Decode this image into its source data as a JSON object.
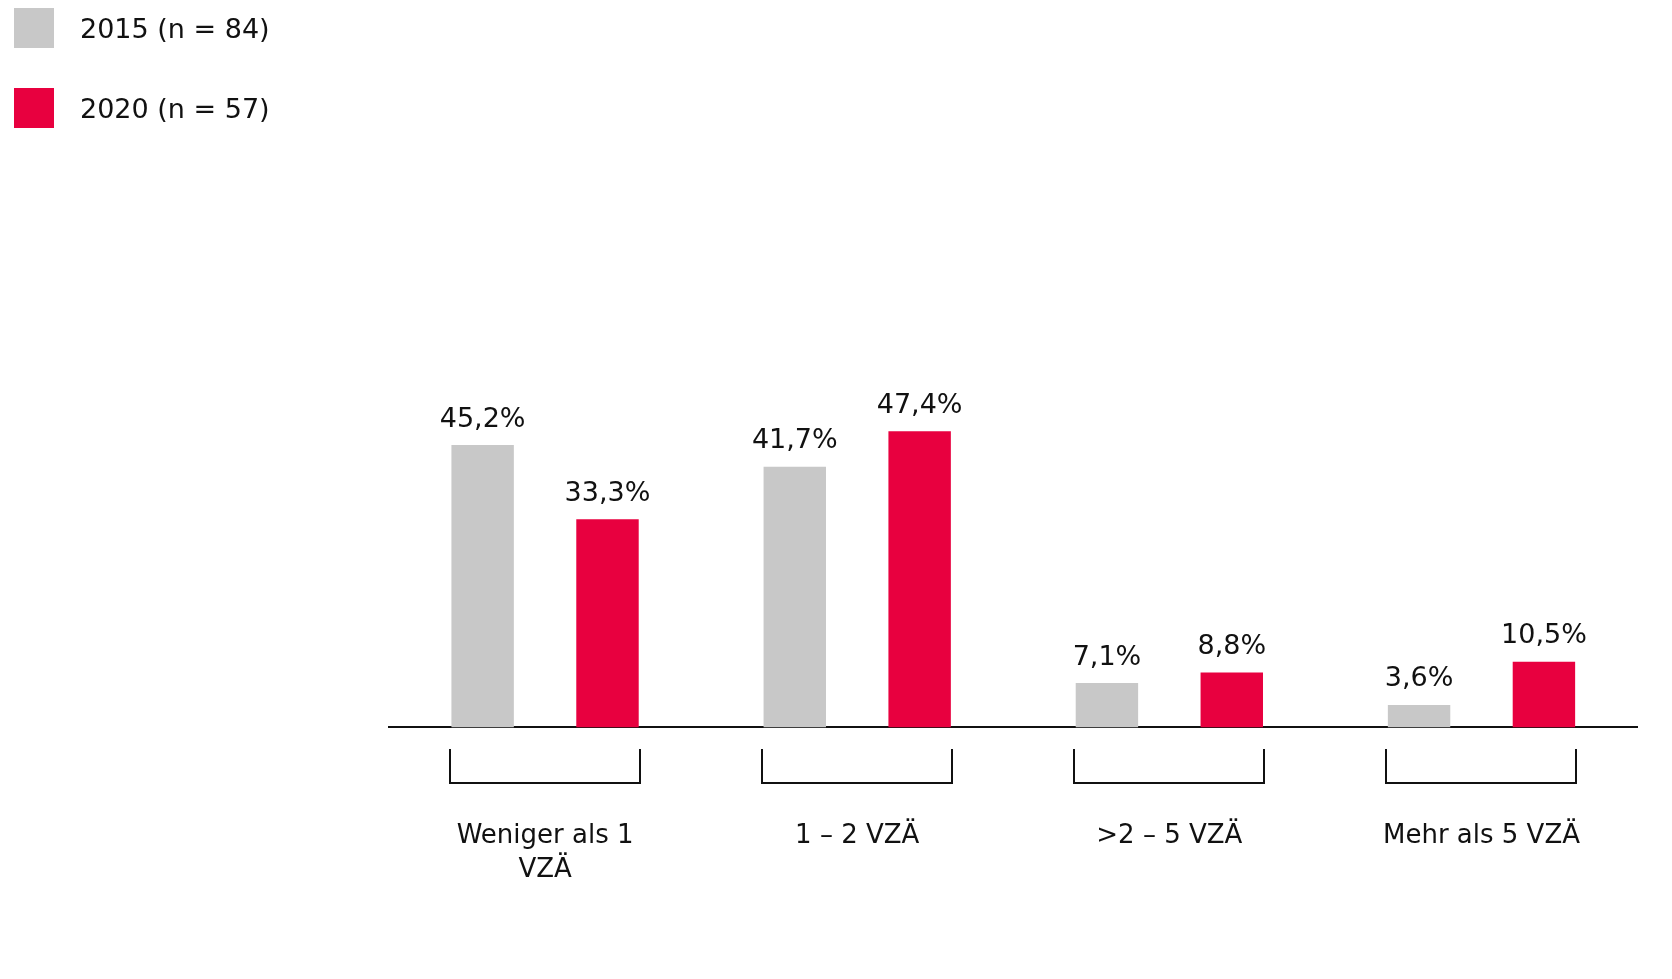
{
  "chart_data": {
    "type": "bar",
    "categories": [
      "Weniger als 1 VZÄ",
      "1 – 2 VZÄ",
      ">2 – 5 VZÄ",
      "Mehr als 5 VZÄ"
    ],
    "series": [
      {
        "name": "2015 (n = 84)",
        "color": "#c8c8c8",
        "values": [
          45.2,
          41.7,
          7.1,
          3.6
        ],
        "value_labels": [
          "45,2%",
          "41,7%",
          "7,1%",
          "3,6%"
        ]
      },
      {
        "name": "2020 (n = 57)",
        "color": "#e8003f",
        "values": [
          33.3,
          47.4,
          8.8,
          10.5
        ],
        "value_labels": [
          "33,3%",
          "47,4%",
          "8,8%",
          "10,5%"
        ]
      }
    ],
    "legend": "top left",
    "grid": false
  }
}
